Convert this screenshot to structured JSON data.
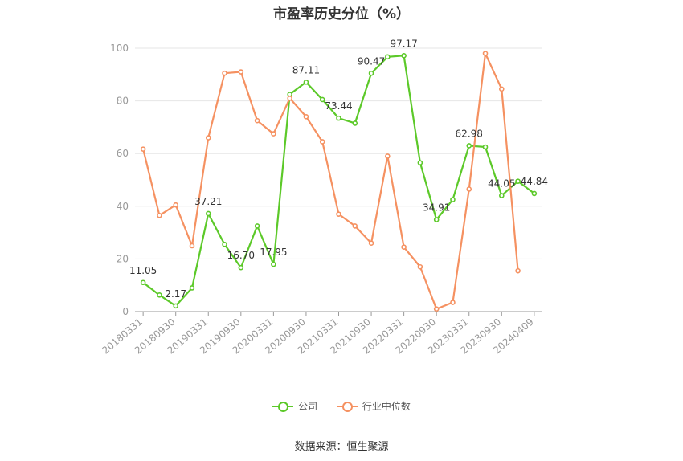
{
  "chart_data": {
    "type": "line",
    "title": "市盈率历史分位（%）",
    "ylim": [
      0,
      100
    ],
    "yticks": [
      0,
      20,
      40,
      60,
      80,
      100
    ],
    "grid": true,
    "legend_position": "bottom",
    "x": [
      "20180331",
      "20180630",
      "20180930",
      "20181231",
      "20190331",
      "20190630",
      "20190930",
      "20191231",
      "20200331",
      "20200630",
      "20200930",
      "20201231",
      "20210331",
      "20210630",
      "20210930",
      "20211231",
      "20220331",
      "20220630",
      "20220930",
      "20221231",
      "20230331",
      "20230630",
      "20230930",
      "20231231",
      "20240409"
    ],
    "x_tick_labels": [
      "20180331",
      "20180930",
      "20190331",
      "20190930",
      "20200331",
      "20200930",
      "20210331",
      "20210930",
      "20220331",
      "20220930",
      "20230331",
      "20230930",
      "20240409"
    ],
    "series": [
      {
        "name": "公司",
        "color": "#5cc929",
        "values": [
          11.05,
          6.3,
          2.17,
          9.0,
          37.21,
          25.5,
          16.7,
          32.5,
          17.95,
          82.5,
          87.11,
          80.5,
          73.44,
          71.5,
          90.47,
          96.7,
          97.17,
          56.5,
          34.91,
          42.5,
          62.98,
          62.5,
          44.05,
          49.5,
          44.84
        ],
        "labels": [
          "11.05",
          "",
          "2.17",
          "",
          "37.21",
          "",
          "16.70",
          "",
          "17.95",
          "",
          "87.11",
          "",
          "73.44",
          "",
          "90.47",
          "",
          "97.17",
          "",
          "34.91",
          "",
          "62.98",
          "",
          "44.05",
          "",
          "44.84"
        ]
      },
      {
        "name": "行业中位数",
        "color": "#f59161",
        "values": [
          61.7,
          36.5,
          40.5,
          25.0,
          66.0,
          90.5,
          91.0,
          72.5,
          67.5,
          81.0,
          74.0,
          64.5,
          37.0,
          32.5,
          26.0,
          59.0,
          24.5,
          17.0,
          1.0,
          3.5,
          46.5,
          98.0,
          84.5,
          15.5,
          null
        ]
      }
    ]
  },
  "source_text": "数据来源：恒生聚源"
}
